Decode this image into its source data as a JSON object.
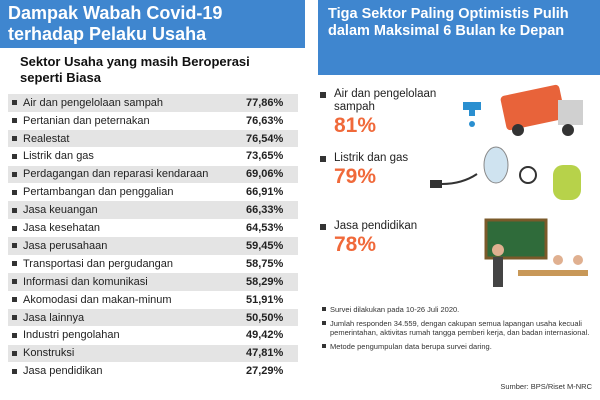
{
  "left": {
    "title": "Dampak Wabah Covid-19 terhadap Pelaku Usaha",
    "subtitle": "Sektor Usaha yang masih Beroperasi seperti Biasa",
    "table": {
      "rows": [
        [
          "Air dan pengelolaan sampah",
          "77,86%"
        ],
        [
          "Pertanian dan peternakan",
          "76,63%"
        ],
        [
          "Realestat",
          "76,54%"
        ],
        [
          "Listrik dan gas",
          "73,65%"
        ],
        [
          "Perdagangan dan reparasi kendaraan",
          "69,06%"
        ],
        [
          "Pertambangan dan penggalian",
          "66,91%"
        ],
        [
          "Jasa keuangan",
          "66,33%"
        ],
        [
          "Jasa kesehatan",
          "64,53%"
        ],
        [
          "Jasa perusahaan",
          "59,45%"
        ],
        [
          "Transportasi dan pergudangan",
          "58,75%"
        ],
        [
          "Informasi dan komunikasi",
          "58,29%"
        ],
        [
          "Akomodasi dan makan-minum",
          "51,91%"
        ],
        [
          "Jasa lainnya",
          "50,50%"
        ],
        [
          "Industri pengolahan",
          "49,42%"
        ],
        [
          "Konstruksi",
          "47,81%"
        ],
        [
          "Jasa pendidikan",
          "27,29%"
        ]
      ]
    }
  },
  "right": {
    "title": "Tiga Sektor Paling Optimistis Pulih dalam Maksimal 6 Bulan ke Depan",
    "items": [
      {
        "label": "Air dan pengelolaan sampah",
        "value": "81%"
      },
      {
        "label": "Listrik dan gas",
        "value": "79%"
      },
      {
        "label": "Jasa pendidikan",
        "value": "78%"
      }
    ],
    "notes": [
      "Survei dilakukan pada 10-26 Juli 2020.",
      "Jumlah responden 34.559, dengan cakupan semua lapangan usaha kecuali pemerintahan, aktivitas rumah tangga pemberi kerja, dan badan internasional.",
      "Metode pengumpulan data berupa survei daring."
    ],
    "source": "Sumber: BPS/Riset M-NRC"
  }
}
